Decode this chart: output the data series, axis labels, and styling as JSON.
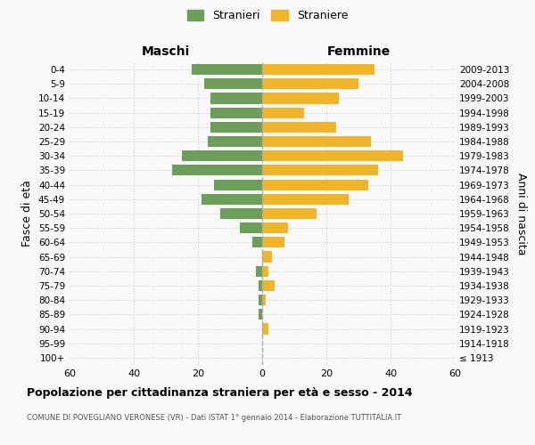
{
  "age_groups": [
    "100+",
    "95-99",
    "90-94",
    "85-89",
    "80-84",
    "75-79",
    "70-74",
    "65-69",
    "60-64",
    "55-59",
    "50-54",
    "45-49",
    "40-44",
    "35-39",
    "30-34",
    "25-29",
    "20-24",
    "15-19",
    "10-14",
    "5-9",
    "0-4"
  ],
  "birth_years": [
    "≤ 1913",
    "1914-1918",
    "1919-1923",
    "1924-1928",
    "1929-1933",
    "1934-1938",
    "1939-1943",
    "1944-1948",
    "1949-1953",
    "1954-1958",
    "1959-1963",
    "1964-1968",
    "1969-1973",
    "1974-1978",
    "1979-1983",
    "1984-1988",
    "1989-1993",
    "1994-1998",
    "1999-2003",
    "2004-2008",
    "2009-2013"
  ],
  "males": [
    0,
    0,
    0,
    1,
    1,
    1,
    2,
    0,
    3,
    7,
    13,
    19,
    15,
    28,
    25,
    17,
    16,
    16,
    16,
    18,
    22
  ],
  "females": [
    0,
    0,
    2,
    0,
    1,
    4,
    2,
    3,
    7,
    8,
    17,
    27,
    33,
    36,
    44,
    34,
    23,
    13,
    24,
    30,
    35
  ],
  "male_color": "#6d9e5a",
  "female_color": "#f0b429",
  "grid_color": "#cccccc",
  "center_line_color": "#aaaaaa",
  "xlim": 60,
  "title": "Popolazione per cittadinanza straniera per età e sesso - 2014",
  "subtitle": "COMUNE DI POVEGLIANO VERONESE (VR) - Dati ISTAT 1° gennaio 2014 - Elaborazione TUTTITALIA.IT",
  "ylabel_left": "Fasce di età",
  "ylabel_right": "Anni di nascita",
  "legend_male": "Stranieri",
  "legend_female": "Straniere",
  "maschi_label": "Maschi",
  "femmine_label": "Femmine",
  "bg_color": "#f9f9f9"
}
